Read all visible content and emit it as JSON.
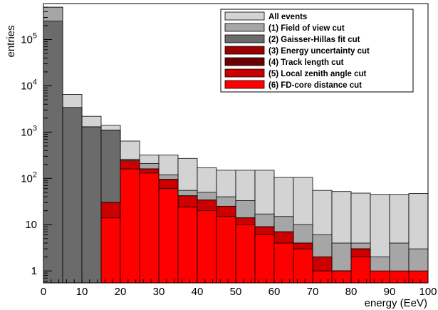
{
  "chart_data": {
    "type": "histogram",
    "title": "",
    "xlabel": "energy (EeV)",
    "ylabel": "entries",
    "xlim": [
      0,
      100
    ],
    "ylim": [
      0.55,
      600000
    ],
    "yscale": "log",
    "bin_width": 5,
    "bin_edges": [
      0,
      5,
      10,
      15,
      20,
      25,
      30,
      35,
      40,
      45,
      50,
      55,
      60,
      65,
      70,
      75,
      80,
      85,
      90,
      95,
      100
    ],
    "xticks": [
      0,
      10,
      20,
      30,
      40,
      50,
      60,
      70,
      80,
      90,
      100
    ],
    "yticks": [
      {
        "value": 1,
        "base": "1",
        "exp": ""
      },
      {
        "value": 10,
        "base": "10",
        "exp": ""
      },
      {
        "value": 100,
        "base": "10",
        "exp": "2"
      },
      {
        "value": 1000,
        "base": "10",
        "exp": "3"
      },
      {
        "value": 10000,
        "base": "10",
        "exp": "4"
      },
      {
        "value": 100000,
        "base": "10",
        "exp": "5"
      }
    ],
    "legend_position": "top-right",
    "series": [
      {
        "name": "All events",
        "color": "#d3d3d3",
        "values": [
          500000,
          6500,
          2200,
          1400,
          640,
          320,
          320,
          270,
          170,
          150,
          150,
          150,
          105,
          105,
          55,
          52,
          48,
          45,
          45,
          47
        ]
      },
      {
        "name": "(1) Field of view cut",
        "color": "#a6a6a6",
        "values": [
          500000,
          3400,
          1300,
          1100,
          260,
          210,
          120,
          55,
          50,
          40,
          33,
          17,
          15,
          10,
          6,
          4,
          4,
          2,
          4,
          3
        ]
      },
      {
        "name": "(2) Gaisser-Hillas fit cut",
        "color": "#6b6b6b",
        "values": [
          250000,
          3400,
          1300,
          1100,
          0,
          0,
          0,
          0,
          0,
          0,
          0,
          0,
          0,
          0,
          0,
          0,
          0,
          0,
          0,
          0
        ]
      },
      {
        "name": "(3) Energy uncertainty cut",
        "color": "#990000",
        "values": [
          0,
          0,
          0,
          30,
          240,
          160,
          95,
          42,
          34,
          25,
          14,
          9,
          7,
          4,
          2,
          1,
          3,
          0,
          0,
          0
        ]
      },
      {
        "name": "(4) Track length cut",
        "color": "#6b0000",
        "values": [
          0,
          0,
          0,
          30,
          240,
          160,
          95,
          42,
          34,
          25,
          14,
          9,
          7,
          4,
          2,
          1,
          3,
          0,
          0,
          0
        ]
      },
      {
        "name": "(5) Local zenith angle cut",
        "color": "#cc0000",
        "values": [
          0,
          0,
          0,
          30,
          240,
          160,
          95,
          42,
          34,
          25,
          14,
          9,
          7,
          4,
          2,
          1,
          3,
          0,
          0,
          0
        ]
      },
      {
        "name": "(6) FD-core distance cut",
        "color": "#ff0000",
        "values": [
          0,
          0,
          0,
          14,
          160,
          130,
          60,
          24,
          20,
          15,
          10,
          6,
          4,
          3,
          1,
          1,
          2,
          1,
          1,
          1
        ]
      }
    ]
  }
}
